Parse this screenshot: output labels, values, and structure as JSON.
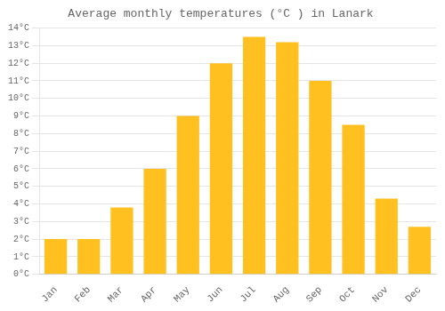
{
  "chart_data": {
    "type": "bar",
    "title": "Average monthly temperatures (°C ) in Lanark",
    "categories": [
      "Jan",
      "Feb",
      "Mar",
      "Apr",
      "May",
      "Jun",
      "Jul",
      "Aug",
      "Sep",
      "Oct",
      "Nov",
      "Dec"
    ],
    "values": [
      2.0,
      2.0,
      3.8,
      6.0,
      9.0,
      12.0,
      13.5,
      13.2,
      11.0,
      8.5,
      4.3,
      2.7
    ],
    "color": "#FFC020",
    "ylim": [
      0,
      14
    ],
    "yticks": [
      {
        "value": 0,
        "label": "0°C"
      },
      {
        "value": 1,
        "label": "1°C"
      },
      {
        "value": 2,
        "label": "2°C"
      },
      {
        "value": 3,
        "label": "3°C"
      },
      {
        "value": 4,
        "label": "4°C"
      },
      {
        "value": 5,
        "label": "5°C"
      },
      {
        "value": 6,
        "label": "6°C"
      },
      {
        "value": 7,
        "label": "7°C"
      },
      {
        "value": 8,
        "label": "8°C"
      },
      {
        "value": 9,
        "label": "9°C"
      },
      {
        "value": 10,
        "label": "10°C"
      },
      {
        "value": 11,
        "label": "11°C"
      },
      {
        "value": 12,
        "label": "12°C"
      },
      {
        "value": 13,
        "label": "13°C"
      },
      {
        "value": 14,
        "label": "14°C"
      }
    ],
    "grid": true
  }
}
